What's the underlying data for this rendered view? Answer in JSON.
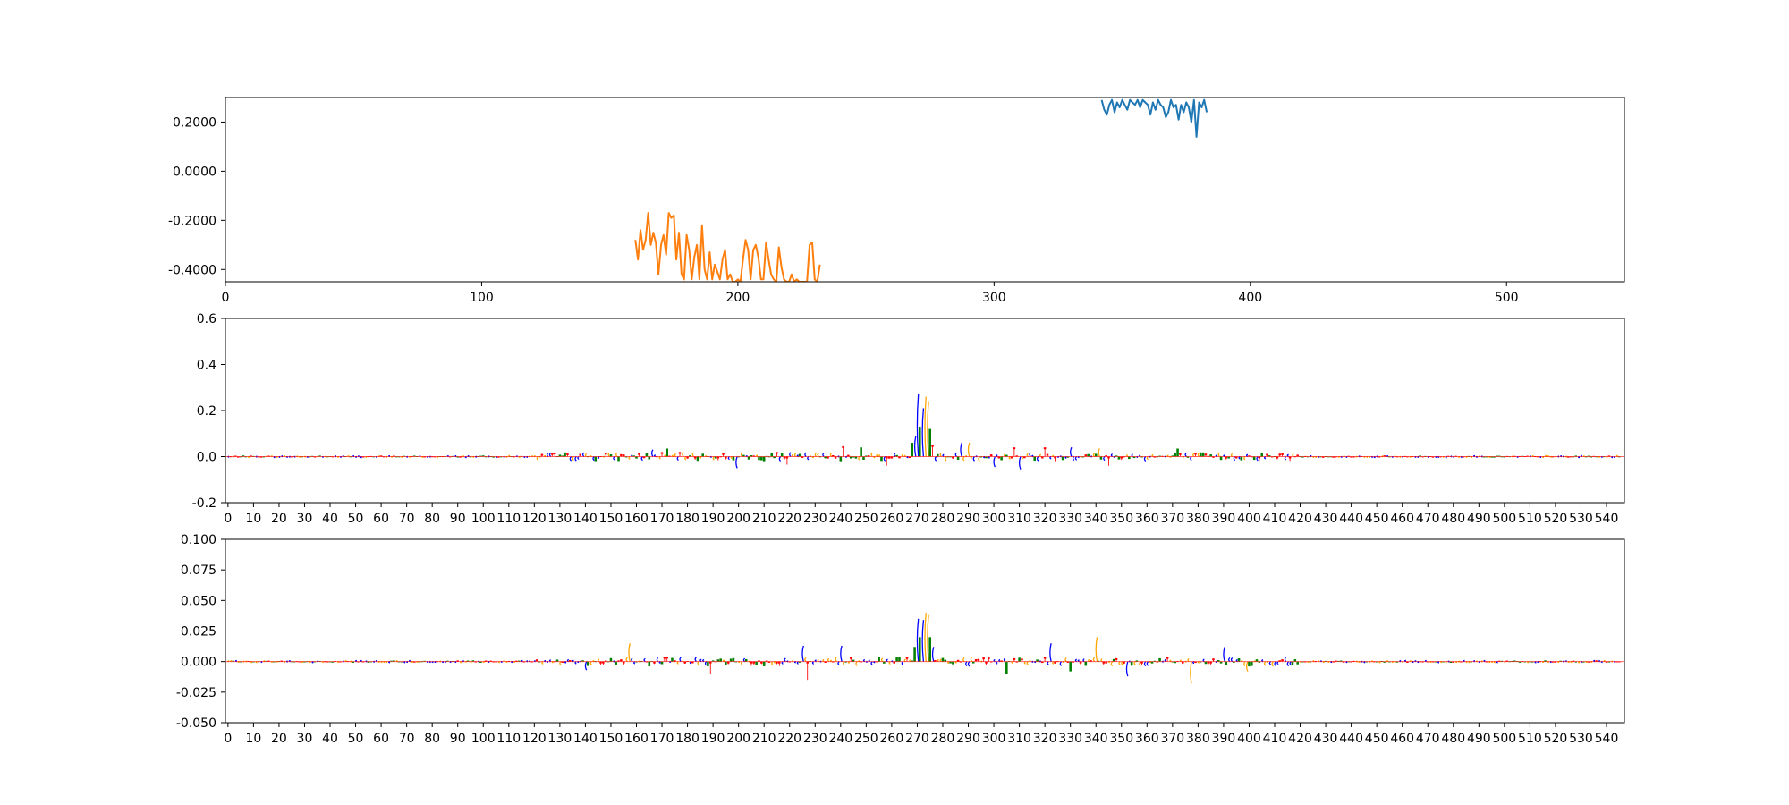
{
  "chart_data": [
    {
      "type": "line",
      "title": "",
      "xlabel": "",
      "ylabel": "",
      "xlim": [
        0,
        546
      ],
      "ylim": [
        -0.45,
        0.3
      ],
      "x_ticks": [
        "0",
        "100",
        "200",
        "300",
        "400",
        "500"
      ],
      "y_ticks": [
        "0.2000",
        "0.0000",
        "-0.2000",
        "-0.4000"
      ],
      "colors": [
        "#1f77b4",
        "#ff7f0e"
      ],
      "series": [
        {
          "color": "#1f77b4",
          "x": [
            342,
            343,
            344,
            345,
            346,
            347,
            348,
            349,
            350,
            351,
            352,
            353,
            354,
            355,
            356,
            357,
            358,
            359,
            360,
            361,
            362,
            363,
            364,
            365,
            366,
            367,
            368,
            369,
            370,
            371,
            372,
            373,
            374,
            375,
            376,
            377,
            378,
            379,
            380,
            381,
            382,
            383
          ],
          "y": [
            0.29,
            0.25,
            0.23,
            0.27,
            0.29,
            0.24,
            0.28,
            0.26,
            0.29,
            0.27,
            0.25,
            0.29,
            0.28,
            0.27,
            0.29,
            0.26,
            0.29,
            0.28,
            0.27,
            0.23,
            0.28,
            0.25,
            0.29,
            0.27,
            0.26,
            0.22,
            0.24,
            0.29,
            0.26,
            0.27,
            0.21,
            0.27,
            0.24,
            0.28,
            0.26,
            0.2,
            0.29,
            0.14,
            0.28,
            0.26,
            0.29,
            0.24
          ]
        },
        {
          "color": "#ff7f0e",
          "x": [
            160,
            161,
            162,
            163,
            164,
            165,
            166,
            167,
            168,
            169,
            170,
            171,
            172,
            173,
            174,
            175,
            176,
            177,
            178,
            179,
            180,
            181,
            182,
            183,
            184,
            185,
            186,
            187,
            188,
            189,
            190,
            191,
            192,
            193,
            194,
            195,
            196,
            197,
            198,
            199,
            200,
            201,
            202,
            203,
            204,
            205,
            206,
            207,
            208,
            209,
            210,
            211,
            212,
            213,
            214,
            215,
            216,
            217,
            218,
            219,
            220,
            221,
            222,
            223,
            224,
            225,
            226,
            227,
            228,
            229,
            230,
            231,
            232
          ],
          "y": [
            -0.28,
            -0.36,
            -0.24,
            -0.32,
            -0.28,
            -0.17,
            -0.3,
            -0.25,
            -0.29,
            -0.42,
            -0.3,
            -0.26,
            -0.34,
            -0.17,
            -0.19,
            -0.18,
            -0.36,
            -0.25,
            -0.42,
            -0.44,
            -0.26,
            -0.32,
            -0.44,
            -0.35,
            -0.3,
            -0.44,
            -0.22,
            -0.4,
            -0.44,
            -0.33,
            -0.44,
            -0.38,
            -0.41,
            -0.44,
            -0.36,
            -0.32,
            -0.44,
            -0.42,
            -0.45,
            -0.45,
            -0.44,
            -0.45,
            -0.36,
            -0.28,
            -0.32,
            -0.44,
            -0.32,
            -0.3,
            -0.35,
            -0.44,
            -0.44,
            -0.29,
            -0.36,
            -0.42,
            -0.44,
            -0.45,
            -0.31,
            -0.39,
            -0.44,
            -0.45,
            -0.45,
            -0.42,
            -0.45,
            -0.44,
            -0.45,
            -0.45,
            -0.45,
            -0.45,
            -0.3,
            -0.29,
            -0.44,
            -0.45,
            -0.38
          ]
        }
      ]
    },
    {
      "type": "bar",
      "title": "",
      "xlabel": "",
      "ylabel": "",
      "xlim": [
        -1,
        547
      ],
      "ylim": [
        -0.2,
        0.6
      ],
      "x_ticks": [
        "0",
        "10",
        "20",
        "30",
        "40",
        "50",
        "60",
        "70",
        "80",
        "90",
        "100",
        "110",
        "120",
        "130",
        "140",
        "150",
        "160",
        "170",
        "180",
        "190",
        "200",
        "210",
        "220",
        "230",
        "240",
        "250",
        "260",
        "270",
        "280",
        "290",
        "300",
        "310",
        "320",
        "330",
        "340",
        "350",
        "360",
        "370",
        "380",
        "390",
        "400",
        "410",
        "420",
        "430",
        "440",
        "450",
        "460",
        "470",
        "480",
        "490",
        "500",
        "510",
        "520",
        "530",
        "540"
      ],
      "y_ticks": [
        "0.6",
        "0.4",
        "0.2",
        "0.0",
        "-0.2"
      ],
      "colors": {
        "A": "#008000",
        "C": "#0000ff",
        "G": "#ffa500",
        "T": "#ff0000"
      },
      "peaks": [
        {
          "x": 268,
          "base": "A",
          "value": 0.06
        },
        {
          "x": 269,
          "base": "C",
          "value": 0.09
        },
        {
          "x": 270,
          "base": "C",
          "value": 0.27
        },
        {
          "x": 271,
          "base": "A",
          "value": 0.13
        },
        {
          "x": 272,
          "base": "C",
          "value": 0.21
        },
        {
          "x": 273,
          "base": "G",
          "value": 0.26
        },
        {
          "x": 274,
          "base": "G",
          "value": 0.24
        },
        {
          "x": 275,
          "base": "A",
          "value": 0.12
        },
        {
          "x": 276,
          "base": "T",
          "value": 0.05
        },
        {
          "x": 241,
          "base": "T",
          "value": 0.045
        },
        {
          "x": 248,
          "base": "A",
          "value": 0.04
        },
        {
          "x": 287,
          "base": "C",
          "value": 0.06
        },
        {
          "x": 290,
          "base": "G",
          "value": 0.06
        },
        {
          "x": 308,
          "base": "T",
          "value": 0.04
        },
        {
          "x": 320,
          "base": "T",
          "value": 0.04
        },
        {
          "x": 330,
          "base": "C",
          "value": 0.04
        },
        {
          "x": 341,
          "base": "G",
          "value": 0.035
        },
        {
          "x": 372,
          "base": "A",
          "value": 0.035
        },
        {
          "x": 172,
          "base": "A",
          "value": 0.035
        },
        {
          "x": 166,
          "base": "C",
          "value": 0.03
        },
        {
          "x": 199,
          "base": "C",
          "value": -0.05
        },
        {
          "x": 258,
          "base": "T",
          "value": -0.04
        },
        {
          "x": 300,
          "base": "C",
          "value": -0.045
        },
        {
          "x": 310,
          "base": "C",
          "value": -0.055
        },
        {
          "x": 345,
          "base": "T",
          "value": -0.04
        },
        {
          "x": 219,
          "base": "T",
          "value": -0.035
        }
      ],
      "noise_amplitude": 0.02
    },
    {
      "type": "bar",
      "title": "",
      "xlabel": "",
      "ylabel": "",
      "xlim": [
        -1,
        547
      ],
      "ylim": [
        -0.05,
        0.1
      ],
      "x_ticks": [
        "0",
        "10",
        "20",
        "30",
        "40",
        "50",
        "60",
        "70",
        "80",
        "90",
        "100",
        "110",
        "120",
        "130",
        "140",
        "150",
        "160",
        "170",
        "180",
        "190",
        "200",
        "210",
        "220",
        "230",
        "240",
        "250",
        "260",
        "270",
        "280",
        "290",
        "300",
        "310",
        "320",
        "330",
        "340",
        "350",
        "360",
        "370",
        "380",
        "390",
        "400",
        "410",
        "420",
        "430",
        "440",
        "450",
        "460",
        "470",
        "480",
        "490",
        "500",
        "510",
        "520",
        "530",
        "540"
      ],
      "y_ticks": [
        "0.100",
        "0.075",
        "0.050",
        "0.025",
        "0.000",
        "-0.025",
        "-0.050"
      ],
      "colors": {
        "A": "#008000",
        "C": "#0000ff",
        "G": "#ffa500",
        "T": "#ff0000"
      },
      "peaks": [
        {
          "x": 269,
          "base": "A",
          "value": 0.012
        },
        {
          "x": 270,
          "base": "C",
          "value": 0.035
        },
        {
          "x": 271,
          "base": "A",
          "value": 0.02
        },
        {
          "x": 272,
          "base": "C",
          "value": 0.034
        },
        {
          "x": 273,
          "base": "G",
          "value": 0.04
        },
        {
          "x": 274,
          "base": "G",
          "value": 0.038
        },
        {
          "x": 275,
          "base": "A",
          "value": 0.02
        },
        {
          "x": 276,
          "base": "C",
          "value": 0.012
        },
        {
          "x": 157,
          "base": "G",
          "value": 0.015
        },
        {
          "x": 225,
          "base": "C",
          "value": 0.013
        },
        {
          "x": 240,
          "base": "C",
          "value": 0.013
        },
        {
          "x": 322,
          "base": "C",
          "value": 0.015
        },
        {
          "x": 340,
          "base": "G",
          "value": 0.02
        },
        {
          "x": 390,
          "base": "C",
          "value": 0.012
        },
        {
          "x": 189,
          "base": "T",
          "value": -0.01
        },
        {
          "x": 227,
          "base": "T",
          "value": -0.015
        },
        {
          "x": 352,
          "base": "C",
          "value": -0.012
        },
        {
          "x": 377,
          "base": "G",
          "value": -0.018
        },
        {
          "x": 399,
          "base": "G",
          "value": -0.008
        },
        {
          "x": 140,
          "base": "C",
          "value": -0.007
        },
        {
          "x": 305,
          "base": "A",
          "value": -0.01
        },
        {
          "x": 330,
          "base": "A",
          "value": -0.008
        }
      ],
      "noise_amplitude": 0.004
    }
  ]
}
